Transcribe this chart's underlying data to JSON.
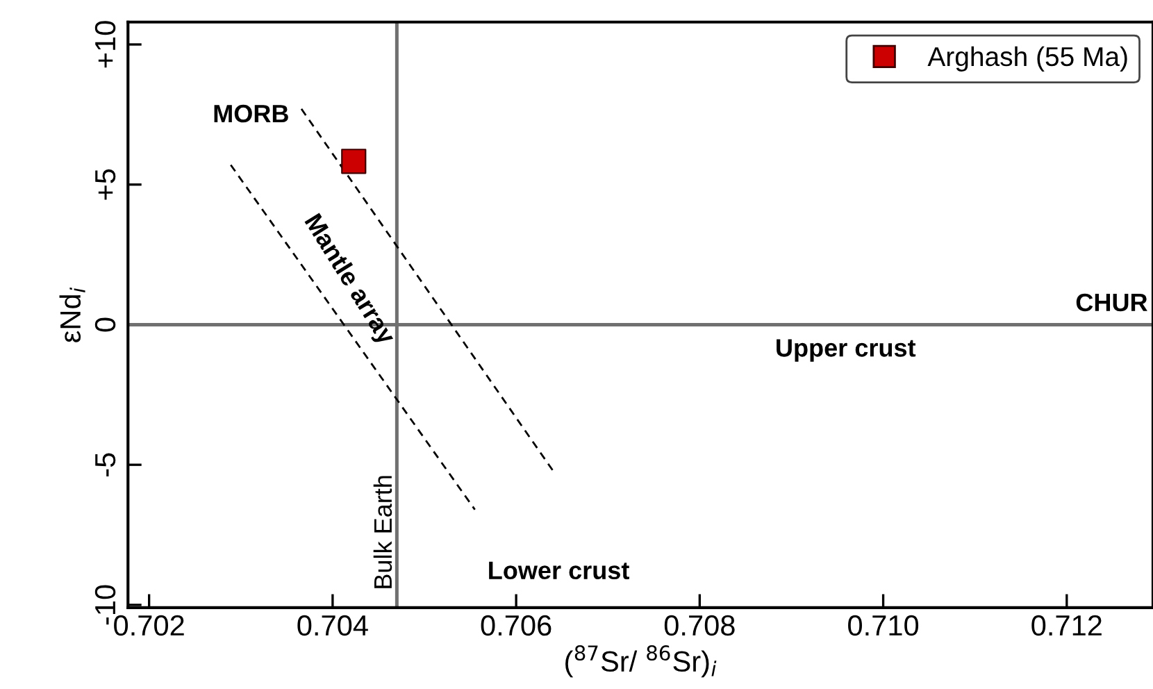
{
  "chart_data": {
    "type": "scatter",
    "xlabel": "($^{87}$Sr/ $^{86}$Sr)$_{i}$",
    "ylabel": "εNd$_{i}$",
    "series": [
      {
        "name": "Arghash (55 Ma)",
        "color": "#cc0000",
        "marker": "square",
        "x": [
          0.70423
        ],
        "values": [
          5.83
        ]
      },
      {
        "type": "line",
        "color": "#000000",
        "line_style": "dashed",
        "marker": "none",
        "x": [
          0.70366,
          0.70642
        ],
        "values": [
          7.7,
          -5.3
        ]
      },
      {
        "type": "line",
        "color": "#000000",
        "line_style": "dashed",
        "marker": "none",
        "x": [
          0.70289,
          0.70555
        ],
        "values": [
          5.7,
          -6.6
        ]
      }
    ],
    "ref_lines": [
      {
        "axis": "x",
        "value": 0.7047,
        "label": "Bulk Earth",
        "color": "#707070"
      },
      {
        "axis": "y",
        "value": 0,
        "label": "CHUR",
        "color": "#707070"
      }
    ],
    "annotations": [
      "MORB",
      "Mantle array",
      "Upper crust",
      "Lower crust"
    ],
    "xlim": [
      0.70177,
      0.71294
    ],
    "ylim": [
      -10.1,
      10.8
    ],
    "xticks": [
      {
        "value": 0.702,
        "label": "0.702"
      },
      {
        "value": 0.704,
        "label": "0.704"
      },
      {
        "value": 0.706,
        "label": "0.706"
      },
      {
        "value": 0.708,
        "label": "0.708"
      },
      {
        "value": 0.71,
        "label": "0.710"
      },
      {
        "value": 0.712,
        "label": "0.712"
      }
    ],
    "yticks": [
      {
        "value": 10,
        "label": "+10"
      },
      {
        "value": 5,
        "label": "+5"
      },
      0,
      -5,
      -10
    ],
    "grid": false,
    "legend": "top right"
  }
}
